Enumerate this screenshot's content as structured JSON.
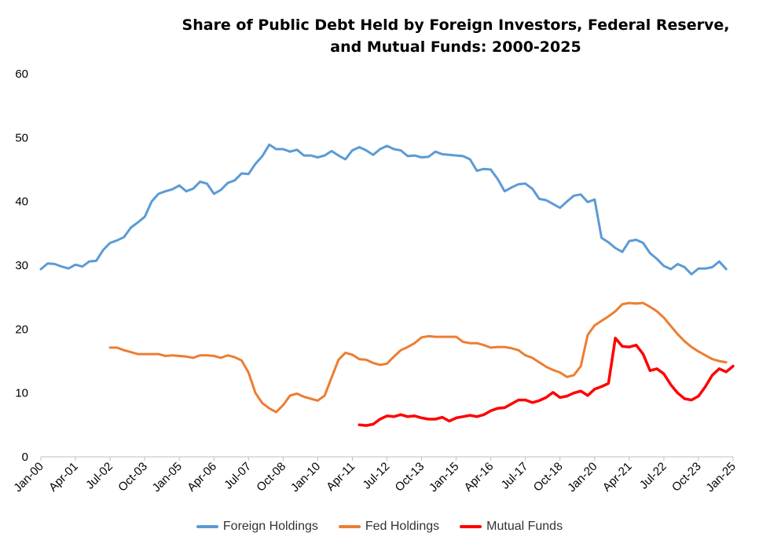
{
  "colors": {
    "foreign": "#5B9BD5",
    "fed": "#ED7D31",
    "mutual": "#FF0000",
    "axis": "#BFBFBF"
  },
  "chart_data": {
    "type": "line",
    "title": "Share of Public Debt Held by Foreign Investors, Federal Reserve, and Mutual Funds: 2000-2025",
    "xlabel": "",
    "ylabel": "",
    "ylim": [
      0,
      60
    ],
    "yticks": [
      "0",
      "10",
      "20",
      "30",
      "40",
      "50",
      "60"
    ],
    "xticks": [
      "Jan-00",
      "Apr-01",
      "Jul-02",
      "Oct-03",
      "Jan-05",
      "Apr-06",
      "Jul-07",
      "Oct-08",
      "Jan-10",
      "Apr-11",
      "Jul-12",
      "Oct-13",
      "Jan-15",
      "Apr-16",
      "Jul-17",
      "Oct-18",
      "Jan-20",
      "Apr-21",
      "Jul-22",
      "Oct-23",
      "Jan-25"
    ],
    "x_frequency": "quarterly",
    "x_start": "Jan-00",
    "grid": false,
    "legend_position": "bottom",
    "series": [
      {
        "name": "Foreign Holdings",
        "start_index": 0,
        "values": [
          29.4,
          30.3,
          30.2,
          29.8,
          29.5,
          30.1,
          29.8,
          30.6,
          30.7,
          32.4,
          33.5,
          33.9,
          34.4,
          35.9,
          36.7,
          37.6,
          40.0,
          41.2,
          41.6,
          41.9,
          42.5,
          41.6,
          42.0,
          43.1,
          42.8,
          41.2,
          41.8,
          42.9,
          43.3,
          44.4,
          44.3,
          45.9,
          47.1,
          48.9,
          48.2,
          48.2,
          47.8,
          48.1,
          47.2,
          47.2,
          46.9,
          47.2,
          47.9,
          47.2,
          46.6,
          48.0,
          48.5,
          48.0,
          47.3,
          48.2,
          48.7,
          48.2,
          48.0,
          47.1,
          47.2,
          46.9,
          47.0,
          47.8,
          47.4,
          47.3,
          47.2,
          47.1,
          46.6,
          44.8,
          45.1,
          45.0,
          43.5,
          41.6,
          42.2,
          42.7,
          42.8,
          42.0,
          40.4,
          40.2,
          39.6,
          39.0,
          40.0,
          40.9,
          41.1,
          39.9,
          40.3,
          34.3,
          33.6,
          32.7,
          32.1,
          33.8,
          34.0,
          33.5,
          31.9,
          31.0,
          29.9,
          29.4,
          30.2,
          29.7,
          28.6,
          29.5,
          29.5,
          29.7,
          30.6,
          29.4
        ]
      },
      {
        "name": "Fed Holdings",
        "start_index": 10,
        "values": [
          17.1,
          17.1,
          16.7,
          16.4,
          16.1,
          16.1,
          16.1,
          16.1,
          15.8,
          15.9,
          15.8,
          15.7,
          15.5,
          15.9,
          15.9,
          15.8,
          15.5,
          15.9,
          15.6,
          15.1,
          13.2,
          10.0,
          8.4,
          7.6,
          7.0,
          8.1,
          9.6,
          9.9,
          9.4,
          9.1,
          8.8,
          9.6,
          12.4,
          15.2,
          16.3,
          16.0,
          15.3,
          15.2,
          14.7,
          14.4,
          14.6,
          15.7,
          16.7,
          17.2,
          17.8,
          18.7,
          18.9,
          18.8,
          18.8,
          18.8,
          18.8,
          18.0,
          17.8,
          17.8,
          17.5,
          17.1,
          17.2,
          17.2,
          17.0,
          16.7,
          15.9,
          15.5,
          14.8,
          14.1,
          13.6,
          13.2,
          12.5,
          12.8,
          14.2,
          19.1,
          20.6,
          21.3,
          22.0,
          22.8,
          23.9,
          24.1,
          24.0,
          24.1,
          23.5,
          22.8,
          21.8,
          20.5,
          19.2,
          18.1,
          17.2,
          16.5,
          15.9,
          15.3,
          15.0,
          14.8
        ]
      },
      {
        "name": "Mutual Funds",
        "start_index": 46,
        "values": [
          5.0,
          4.9,
          5.1,
          5.9,
          6.4,
          6.3,
          6.6,
          6.3,
          6.4,
          6.1,
          5.9,
          5.9,
          6.2,
          5.6,
          6.1,
          6.3,
          6.5,
          6.3,
          6.6,
          7.2,
          7.6,
          7.7,
          8.3,
          8.9,
          8.9,
          8.5,
          8.8,
          9.3,
          10.1,
          9.3,
          9.5,
          10.0,
          10.3,
          9.6,
          10.6,
          11.0,
          11.5,
          18.6,
          17.3,
          17.2,
          17.5,
          16.1,
          13.5,
          13.8,
          13.0,
          11.3,
          10.0,
          9.1,
          8.9,
          9.5,
          11.0,
          12.8,
          13.8,
          13.3,
          14.2
        ]
      }
    ]
  }
}
